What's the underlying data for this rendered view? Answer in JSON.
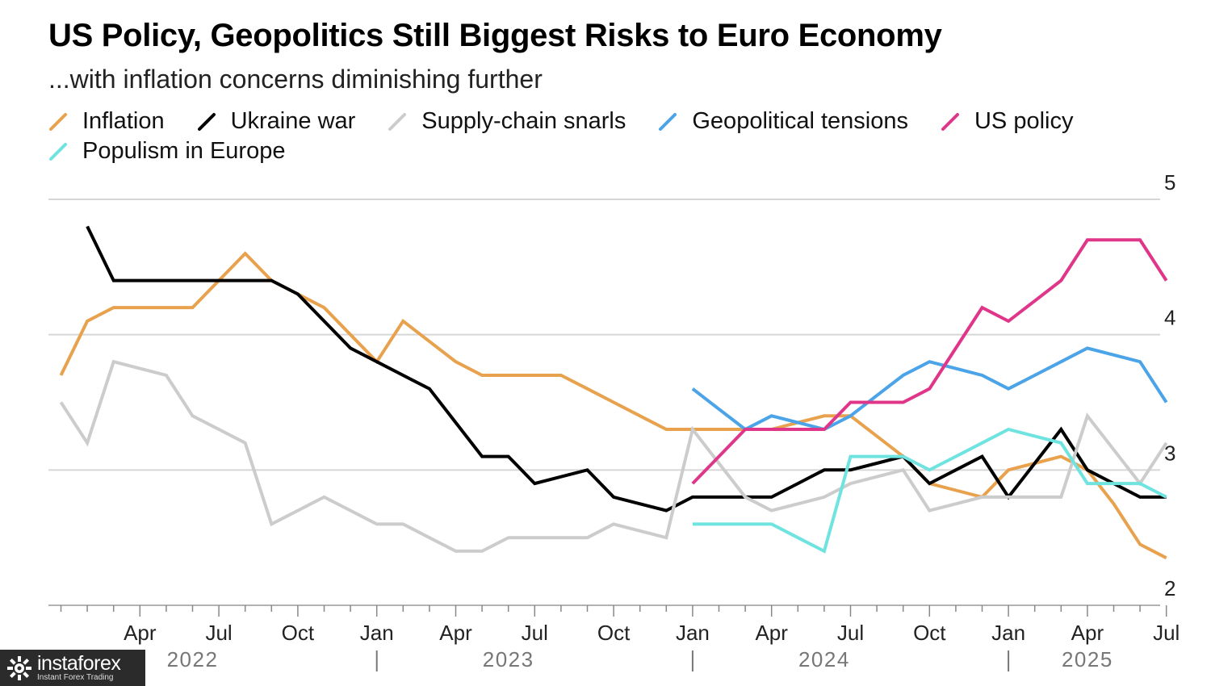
{
  "chart_data": {
    "type": "line",
    "title": "US Policy, Geopolitics Still Biggest Risks to Euro Economy",
    "subtitle": "...with inflation concerns diminishing further",
    "ylim": [
      2,
      5
    ],
    "y_ticks": [
      "5",
      "4",
      "3",
      "2"
    ],
    "y_tick_values": [
      5,
      4,
      3,
      2
    ],
    "grid": true,
    "legend_position": "top",
    "x_months": [
      "Jan 2022",
      "Feb 2022",
      "Mar 2022",
      "Apr 2022",
      "May 2022",
      "Jun 2022",
      "Jul 2022",
      "Aug 2022",
      "Sep 2022",
      "Oct 2022",
      "Nov 2022",
      "Dec 2022",
      "Jan 2023",
      "Feb 2023",
      "Mar 2023",
      "Apr 2023",
      "May 2023",
      "Jun 2023",
      "Jul 2023",
      "Aug 2023",
      "Sep 2023",
      "Oct 2023",
      "Nov 2023",
      "Dec 2023",
      "Jan 2024",
      "Feb 2024",
      "Mar 2024",
      "Apr 2024",
      "May 2024",
      "Jun 2024",
      "Jul 2024",
      "Aug 2024",
      "Sep 2024",
      "Oct 2024",
      "Nov 2024",
      "Dec 2024",
      "Jan 2025",
      "Feb 2025",
      "Mar 2025",
      "Apr 2025",
      "May 2025",
      "Jun 2025",
      "Jul 2025"
    ],
    "x_tick_labels": [
      {
        "label": "Apr",
        "index": 3
      },
      {
        "label": "Jul",
        "index": 6
      },
      {
        "label": "Oct",
        "index": 9
      },
      {
        "label": "Jan",
        "index": 12
      },
      {
        "label": "Apr",
        "index": 15
      },
      {
        "label": "Jul",
        "index": 18
      },
      {
        "label": "Oct",
        "index": 21
      },
      {
        "label": "Jan",
        "index": 24
      },
      {
        "label": "Apr",
        "index": 27
      },
      {
        "label": "Jul",
        "index": 30
      },
      {
        "label": "Oct",
        "index": 33
      },
      {
        "label": "Jan",
        "index": 36
      },
      {
        "label": "Apr",
        "index": 39
      },
      {
        "label": "Jul",
        "index": 42
      }
    ],
    "year_labels": [
      {
        "label": "2022",
        "index": 5
      },
      {
        "label": "2023",
        "index": 17
      },
      {
        "label": "2024",
        "index": 29
      },
      {
        "label": "2025",
        "index": 39
      }
    ],
    "year_dividers": [
      12,
      24,
      36
    ],
    "series": [
      {
        "name": "Inflation",
        "color": "#E8A24E",
        "values": [
          3.7,
          4.1,
          4.2,
          4.2,
          4.2,
          4.2,
          4.4,
          4.6,
          4.4,
          4.3,
          4.2,
          4.0,
          3.8,
          4.1,
          3.95,
          3.8,
          3.7,
          3.7,
          3.7,
          3.7,
          3.6,
          3.5,
          3.4,
          3.3,
          3.3,
          3.3,
          3.3,
          3.3,
          3.35,
          3.4,
          3.4,
          3.25,
          3.1,
          2.9,
          2.85,
          2.8,
          3.0,
          3.05,
          3.1,
          3.0,
          2.75,
          2.45,
          2.35
        ]
      },
      {
        "name": "Ukraine war",
        "color": "#000000",
        "values": [
          null,
          4.8,
          4.4,
          4.4,
          4.4,
          4.4,
          4.4,
          4.4,
          4.4,
          4.3,
          4.1,
          3.9,
          3.8,
          3.7,
          3.6,
          3.35,
          3.1,
          3.1,
          2.9,
          2.95,
          3.0,
          2.8,
          2.75,
          2.7,
          2.8,
          2.8,
          2.8,
          2.8,
          2.9,
          3.0,
          3.0,
          3.05,
          3.1,
          2.9,
          3.0,
          3.1,
          2.8,
          3.05,
          3.3,
          3.0,
          2.9,
          2.8,
          2.8
        ]
      },
      {
        "name": "Supply-chain snarls",
        "color": "#CCCCCC",
        "values": [
          3.5,
          3.2,
          3.8,
          3.75,
          3.7,
          3.4,
          3.3,
          3.2,
          2.6,
          2.7,
          2.8,
          2.7,
          2.6,
          2.6,
          2.5,
          2.4,
          2.4,
          2.5,
          2.5,
          2.5,
          2.5,
          2.6,
          2.55,
          2.5,
          3.3,
          3.05,
          2.8,
          2.7,
          2.75,
          2.8,
          2.9,
          2.95,
          3.0,
          2.7,
          2.75,
          2.8,
          2.8,
          2.8,
          2.8,
          3.4,
          3.15,
          2.9,
          3.2
        ]
      },
      {
        "name": "Geopolitical tensions",
        "color": "#4BA3E8",
        "values": [
          null,
          null,
          null,
          null,
          null,
          null,
          null,
          null,
          null,
          null,
          null,
          null,
          null,
          null,
          null,
          null,
          null,
          null,
          null,
          null,
          null,
          null,
          null,
          null,
          3.6,
          3.45,
          3.3,
          3.4,
          3.35,
          3.3,
          3.4,
          3.55,
          3.7,
          3.8,
          3.75,
          3.7,
          3.6,
          3.7,
          3.8,
          3.9,
          3.85,
          3.8,
          3.5
        ]
      },
      {
        "name": "US policy",
        "color": "#E0368A",
        "values": [
          null,
          null,
          null,
          null,
          null,
          null,
          null,
          null,
          null,
          null,
          null,
          null,
          null,
          null,
          null,
          null,
          null,
          null,
          null,
          null,
          null,
          null,
          null,
          null,
          2.9,
          3.1,
          3.3,
          3.3,
          3.3,
          3.3,
          3.5,
          3.5,
          3.5,
          3.6,
          3.9,
          4.2,
          4.1,
          4.25,
          4.4,
          4.7,
          4.7,
          4.7,
          4.4
        ]
      },
      {
        "name": "Populism in Europe",
        "color": "#6FE3E0",
        "values": [
          null,
          null,
          null,
          null,
          null,
          null,
          null,
          null,
          null,
          null,
          null,
          null,
          null,
          null,
          null,
          null,
          null,
          null,
          null,
          null,
          null,
          null,
          null,
          null,
          2.6,
          2.6,
          2.6,
          2.6,
          2.5,
          2.4,
          3.1,
          3.1,
          3.1,
          3.0,
          3.1,
          3.2,
          3.3,
          3.25,
          3.2,
          2.9,
          2.9,
          2.9,
          2.8
        ]
      }
    ]
  },
  "watermark": {
    "brand": "instaforex",
    "tagline": "Instant Forex Trading"
  }
}
